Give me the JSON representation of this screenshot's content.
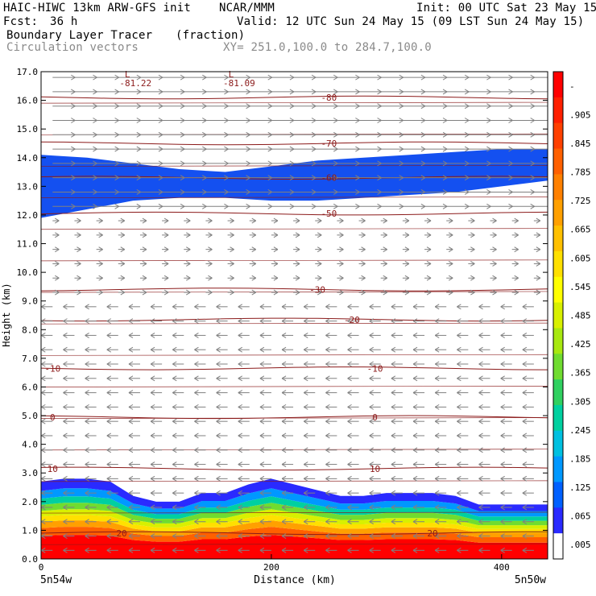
{
  "header": {
    "model": "HAIC-HIWC 13km ARW-GFS init",
    "org": "NCAR/MMM",
    "init": "Init: 00 UTC Sat 23 May 15",
    "fcst_label": "Fcst:",
    "fcst_value": "36 h",
    "valid": "Valid: 12 UTC Sun 24 May 15 (09 LST Sun 24 May 15)",
    "field_name": "Boundary Layer Tracer",
    "field_units": "(fraction)",
    "overlay_name": "Circulation vectors",
    "xy_range": "XY= 251.0,100.0 to 284.7,100.0"
  },
  "colors": {
    "contour": "#8b1a1a",
    "vector": "#808080",
    "tracer_blue": "#1450f0"
  },
  "chart_data": {
    "type": "heatmap",
    "xlabel": "Distance (km)",
    "ylabel": "Height (km)",
    "xlim": [
      0,
      440
    ],
    "ylim": [
      0,
      17
    ],
    "x_ticks": [
      "0",
      "200",
      "400"
    ],
    "x_tick_values": [
      0,
      200,
      400
    ],
    "y_ticks": [
      "0.0",
      "1.0",
      "2.0",
      "3.0",
      "4.0",
      "5.0",
      "6.0",
      "7.0",
      "8.0",
      "9.0",
      "10.0",
      "11.0",
      "12.0",
      "13.0",
      "14.0",
      "15.0",
      "16.0",
      "17.0"
    ],
    "left_endpoint": "5n54w",
    "right_endpoint": "5n50w",
    "colorbar": {
      "labels": [
        "-",
        ".905",
        ".845",
        ".785",
        ".725",
        ".665",
        ".605",
        ".545",
        ".485",
        ".425",
        ".365",
        ".305",
        ".245",
        ".185",
        ".125",
        ".065",
        ".005"
      ],
      "colors": [
        "#ff0000",
        "#ff2000",
        "#ff4000",
        "#ff6000",
        "#ff8000",
        "#ffa000",
        "#ffc000",
        "#ffe000",
        "#ffff00",
        "#d8f000",
        "#a8e810",
        "#70dc30",
        "#30d060",
        "#00d0a0",
        "#00c0e0",
        "#0098ff",
        "#0060ff",
        "#2a2aff",
        "#ffffff"
      ]
    },
    "tracer_layer": {
      "x": [
        0,
        20,
        40,
        60,
        80,
        100,
        120,
        140,
        160,
        180,
        200,
        220,
        240,
        260,
        280,
        300,
        320,
        340,
        360,
        380,
        400,
        420,
        440
      ],
      "top_km": [
        2.7,
        2.8,
        2.8,
        2.7,
        2.2,
        2.0,
        2.0,
        2.3,
        2.3,
        2.6,
        2.8,
        2.6,
        2.4,
        2.2,
        2.2,
        2.3,
        2.3,
        2.3,
        2.2,
        1.9,
        1.9,
        1.9,
        1.9
      ]
    },
    "upper_tracer_band": {
      "x": [
        0,
        40,
        80,
        120,
        160,
        200,
        240,
        280,
        320,
        360,
        400,
        440
      ],
      "bottom_km": [
        11.9,
        12.2,
        12.5,
        12.6,
        12.6,
        12.5,
        12.5,
        12.6,
        12.7,
        12.8,
        13.0,
        13.2
      ],
      "top_km": [
        14.1,
        14.0,
        13.8,
        13.6,
        13.5,
        13.7,
        13.9,
        14.0,
        14.1,
        14.2,
        14.3,
        14.3
      ]
    },
    "contours": [
      {
        "label": "20",
        "height_km": 0.9,
        "label_x": [
          70,
          340
        ]
      },
      {
        "label": "10",
        "height_km": 3.15,
        "label_x": [
          10,
          290
        ]
      },
      {
        "label": "0",
        "height_km": 4.95,
        "label_x": [
          10,
          290
        ]
      },
      {
        "label": "-10",
        "height_km": 6.65,
        "label_x": [
          10,
          290
        ]
      },
      {
        "label": "-20",
        "height_km": 8.35,
        "label_x": [
          270
        ]
      },
      {
        "label": "-30",
        "height_km": 9.4,
        "label_x": [
          240
        ]
      },
      {
        "label": "-50",
        "height_km": 12.05,
        "label_x": [
          250
        ]
      },
      {
        "label": "-60",
        "height_km": 13.3,
        "label_x": [
          250
        ]
      },
      {
        "label": "-70",
        "height_km": 14.5,
        "label_x": [
          250
        ]
      },
      {
        "label": "-80",
        "height_km": 16.1,
        "label_x": [
          250
        ]
      }
    ],
    "minima_labels": [
      {
        "text": "L",
        "x": 75,
        "y_km": 16.8
      },
      {
        "text": "-81.22",
        "x": 82,
        "y_km": 16.5
      },
      {
        "text": "L",
        "x": 165,
        "y_km": 16.8
      },
      {
        "text": "-81.09",
        "x": 172,
        "y_km": 16.5
      }
    ],
    "wind_regimes": [
      {
        "from_km": 12.0,
        "to_km": 17.0,
        "direction": "east",
        "speed": "strong"
      },
      {
        "from_km": 9.0,
        "to_km": 12.0,
        "direction": "east",
        "speed": "weak"
      },
      {
        "from_km": 0.0,
        "to_km": 9.0,
        "direction": "west",
        "speed": "moderate"
      }
    ]
  }
}
